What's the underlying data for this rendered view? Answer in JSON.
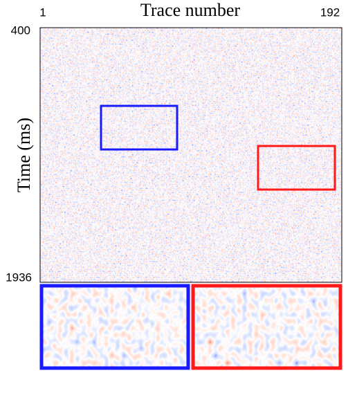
{
  "chart_data": {
    "type": "seismic-section",
    "title": "Trace number",
    "y_label": "Time (ms)",
    "x_labels": [
      "1",
      "192"
    ],
    "y_labels": [
      "400",
      "1936"
    ]
  }
}
